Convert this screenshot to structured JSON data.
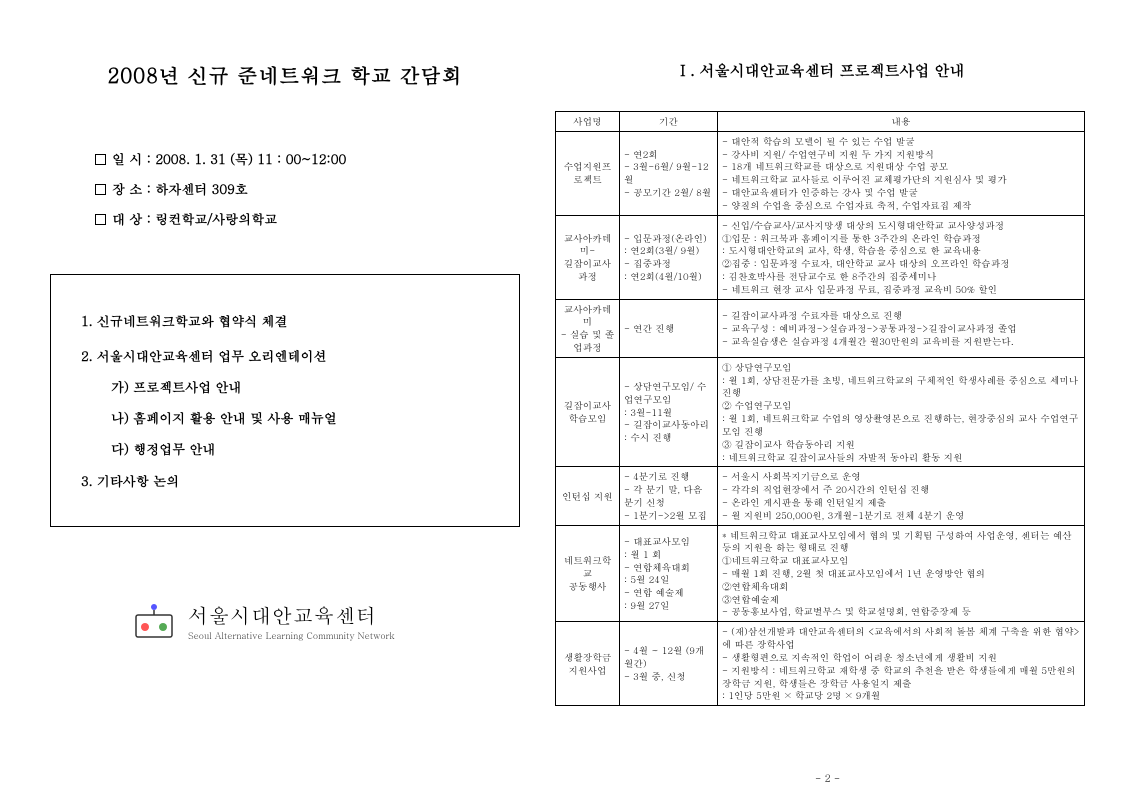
{
  "leftPage": {
    "title": "2008년 신규 준네트워크 학교  간담회",
    "info": {
      "line1": "일    시 :  2008. 1. 31 (목) 11 : 00~12:00",
      "line2": "장    소 : 하자센터 309호",
      "line3": "대    상 : 링컨학교/사랑의학교"
    },
    "agenda": {
      "a1": "1. 신규네트워크학교와 협약식 체결",
      "a2": "2. 서울시대안교육센터  업무 오리엔테이션",
      "a2a": "가) 프로젝트사업 안내",
      "a2b": "나) 홈페이지 활용 안내 및 사용 매뉴얼",
      "a2c": "다) 행정업무 안내",
      "a3": "3. 기타사항 논의"
    },
    "logo": {
      "kr": "서울시대안교육센터",
      "en": "Seoul Alternative Learning Community Network"
    }
  },
  "rightPage": {
    "sectionTitle": "Ⅰ. 서울시대안교육센터 프로젝트사업 안내",
    "headers": {
      "c1": "사업명",
      "c2": "기간",
      "c3": "내용"
    },
    "rows": [
      {
        "name": "수업지원프로젝트",
        "period": "- 연2회\n- 3월-6월/ 9월-12월\n- 공모기간 2월/ 8월",
        "content": "- 대안적 학습의 모델이 될 수 있는 수업 발굴\n- 강사비 지원/ 수업연구비 지원 두 가지 지원방식\n- 18개 네트워크학교를 대상으로 지원대상 수업 공모\n- 네트워크학교 교사들로 이루어진 교체평가단의 지원심사 및 평가\n- 대안교육센터가 인증하는 강사 및 수업 발굴\n- 양질의 수업을 중심으로 수업자료 축적, 수업자료집 제작"
      },
      {
        "name": "교사아카데미-\n길잡이교사과정",
        "period": "- 입문과정(온라인)\n: 연2회(3월/ 9월)\n- 집중과정\n: 연2회(4월/10월)",
        "content": "- 신입/수습교사/교사지망생 대상의 도시형대안학교 교사양성과정\n①입문 : 워크북과 홈페이지를 통한 3주간의 온라인 학습과정\n        : 도시형대안학교의 교사, 학생, 학습을 중심으로 한 교육내용\n②집중 : 입문과정 수료자, 대안학교 교사 대상의 오프라인 학습과정\n        : 김찬호박사를 전담교수로 한 8주간의 집중세미나\n- 네트워크 현장 교사 입문과정 무료, 집중과정 교육비 50% 할인"
      },
      {
        "name": "교사아카데미\n- 실습 및 졸업과정",
        "period": "- 연간 진행",
        "content": "- 길잡이교사과정 수료자를 대상으로 진행\n- 교육구성 : 예비과정->실습과정->공통과정->길잡이교사과정 졸업\n- 교육실습생은 실습과정 4개월간 월30만원의 교육비를 지원받는다."
      },
      {
        "name": "길잡이교사\n학습모임",
        "period": "- 상담연구모임/ 수업연구모임\n: 3월-11월\n- 길잡이교사동아리\n: 수시 진행",
        "content": "① 상담연구모임\n  : 월 1회, 상담전문가를 초빙, 네트워크학교의 구체적인 학생사례를 중심으로 세미나 진행\n② 수업연구모임\n  : 월 1회, 네트워크학교 수업의 영상촬영본으로 진행하는, 현장중심의 교사 수업연구모임 진행\n③ 길잡이교사 학습동아리 지원\n  : 네트워크학교 길잡이교사들의 자발적 동아리 활동 지원"
      },
      {
        "name": "인턴십 지원",
        "period": "- 4분기로 진행\n- 각 분기 말, 다음 분기 신청\n- 1분기->2월 모집",
        "content": "- 서울시 사회복지기금으로 운영\n- 각각의 직업현장에서 주 20시간의 인턴십 진행\n- 온라인 게시판을 통해 인턴일지 제출\n- 월 지원비 250,000원, 3개월-1분기로 전체 4분기 운영"
      },
      {
        "name": "네트워크학교\n공동행사",
        "period": "- 대표교사모임\n: 월 1 회\n- 연합체육대회\n: 5월 24일\n- 연합 예술제\n: 9월 27일",
        "content": "* 네트워크학교 대표교사모임에서 협의 및 기획팀 구성하여 사업운영, 센터는 예산 등의 지원을 하는 형태로 진행\n①네트워크학교 대표교사모임\n- 매월 1회 진행, 2월 첫 대표교사모임에서 1년 운영방안 협의\n②연합체육대회\n③연합예술제\n- 공동홍보사업, 학교별부스 및 학교설명회, 연합증장제 등"
      },
      {
        "name": "생활장학금\n지원사업",
        "period": "- 4월 ~ 12월 (9개월간)\n- 3월 중, 신청",
        "content": "- (재)삼선개발과 대안교육센터의 <교육에서의 사회적 돌봄 체계 구축을 위한 협약>에 따른 장학사업\n- 생활형편으로 지속적인 학업이 어려운 청소년에게 생활비 지원\n- 지원방식 : 네트워크학교 재학생 중 학교의 추천을 받은 학생들에게 매월 5만원의 장학금 지원, 학생들은 장학금 사용일지 제출\n          : 1인당 5만원 × 학교당 2명 × 9개월"
      }
    ]
  },
  "pageNum": "- 2 -",
  "colors": {
    "text": "#000000",
    "bg": "#ffffff"
  }
}
